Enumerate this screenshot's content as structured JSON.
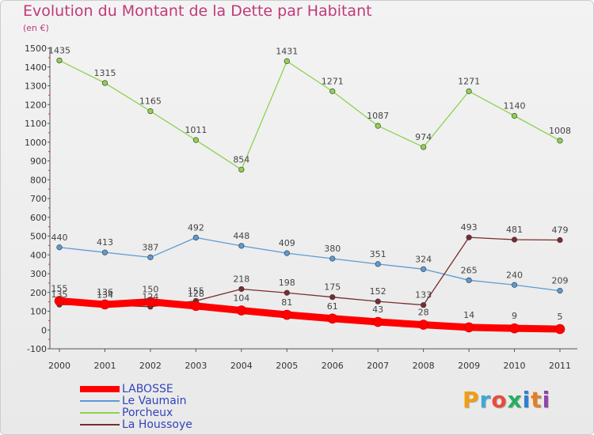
{
  "title": "Evolution du Montant de la Dette par Habitant",
  "subtitle": "(en €)",
  "logo_text": "Proxiti",
  "chart_data": {
    "type": "line",
    "title": "Evolution du Montant de la Dette par Habitant",
    "subtitle": "(en €)",
    "xlabel": "",
    "ylabel": "",
    "x": [
      "2000",
      "2001",
      "2002",
      "2003",
      "2004",
      "2005",
      "2006",
      "2007",
      "2008",
      "2009",
      "2010",
      "2011"
    ],
    "ylim": [
      -100,
      1500
    ],
    "yticks": [
      "-100",
      "0",
      "100",
      "200",
      "300",
      "400",
      "500",
      "600",
      "700",
      "800",
      "900",
      "1000",
      "1100",
      "1200",
      "1300",
      "1400",
      "1500"
    ],
    "grid": false,
    "legend_position": "bottom-left",
    "series": [
      {
        "name": "LABOSSE",
        "values": [
          155,
          136,
          150,
          128,
          104,
          81,
          61,
          43,
          28,
          14,
          9,
          5
        ],
        "labels": [
          "155",
          "136",
          "150",
          "128",
          "104",
          "81",
          "61",
          "43",
          "28",
          "14",
          "9",
          "5"
        ],
        "color": "#ff0000",
        "width": 9
      },
      {
        "name": "Le Vaumain",
        "values": [
          440,
          413,
          387,
          492,
          448,
          409,
          380,
          351,
          324,
          265,
          240,
          209
        ],
        "labels": [
          "440",
          "413",
          "387",
          "492",
          "448",
          "409",
          "380",
          "351",
          "324",
          "265",
          "240",
          "209"
        ],
        "color": "#5b9bd5",
        "width": 1.3
      },
      {
        "name": "Porcheux",
        "values": [
          1435,
          1315,
          1165,
          1011,
          854,
          1431,
          1271,
          1087,
          974,
          1271,
          1140,
          1008
        ],
        "labels": [
          "1435",
          "1315",
          "1165",
          "1011",
          "854",
          "1431",
          "1271",
          "1087",
          "974",
          "1271",
          "1140",
          "1008"
        ],
        "color": "#8fd14f",
        "width": 1.3
      },
      {
        "name": "La Houssoye",
        "values": [
          135,
          134,
          124,
          155,
          218,
          198,
          175,
          152,
          133,
          493,
          481,
          479
        ],
        "labels": [
          "135",
          "134",
          "124",
          "155",
          "218",
          "198",
          "175",
          "152",
          "133",
          "493",
          "481",
          "479"
        ],
        "color": "#7a2c2c",
        "width": 1.3
      }
    ]
  },
  "logo_colors": [
    "#f39c12",
    "#3fa7d6",
    "#e74c3c",
    "#27ae60",
    "#2f7fd0",
    "#e67e22",
    "#8e44ad"
  ]
}
